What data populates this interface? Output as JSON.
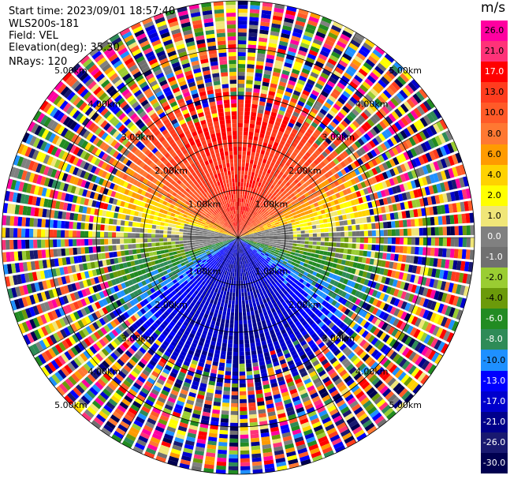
{
  "header": {
    "start_time": "Start time: 2023/09/01 18:57:40",
    "instrument": "WLS200s-181",
    "field": "Field: VEL",
    "elevation": "Elevation(deg): 35.30",
    "nrays": "NRays: 120"
  },
  "chart_data": {
    "type": "heatmap",
    "projection": "PPI polar scan",
    "field": "VEL",
    "units": "m/s",
    "nrays": 120,
    "elevation_deg": 35.3,
    "max_range_km": 5.0,
    "range_rings_km": [
      1,
      2,
      3,
      4,
      5
    ],
    "range_ring_labels": [
      "1.00km",
      "2.00km",
      "3.00km",
      "4.00km",
      "5.00km"
    ],
    "velocity_structure": [
      {
        "azimuth": "N",
        "typical_velocity_ms": 17.0
      },
      {
        "azimuth": "E/W",
        "typical_velocity_ms": 0.0
      },
      {
        "azimuth": "S",
        "typical_velocity_ms": -13.0
      }
    ],
    "colorbar": {
      "label": "m/s",
      "ticks": [
        "26.0",
        "21.0",
        "17.0",
        "13.0",
        "10.0",
        "8.0",
        "6.0",
        "4.0",
        "2.0",
        "1.0",
        "0.0",
        "-1.0",
        "-2.0",
        "-4.0",
        "-6.0",
        "-8.0",
        "-10.0",
        "-13.0",
        "-17.0",
        "-21.0",
        "-26.0",
        "-30.0"
      ],
      "colors": [
        "#ff00a0",
        "#ff3278",
        "#ff0000",
        "#ff3c1e",
        "#ff5a28",
        "#ff7832",
        "#ff9b00",
        "#ffd200",
        "#ffff00",
        "#f0e678",
        "#808080",
        "#707070",
        "#9acd32",
        "#6b9a0a",
        "#228b22",
        "#2e8b57",
        "#1e90ff",
        "#0000ff",
        "#0000cd",
        "#00008b",
        "#191970",
        "#000050"
      ],
      "range": [
        -30,
        30
      ]
    }
  }
}
